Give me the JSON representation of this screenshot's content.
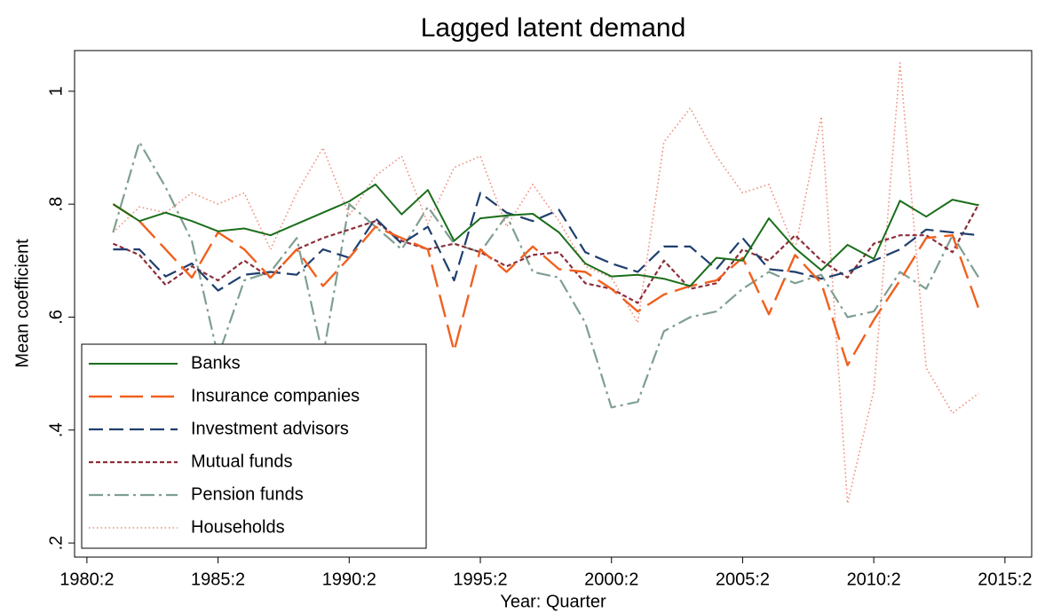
{
  "chart_data": {
    "type": "line",
    "title": "Lagged latent demand",
    "x_label": "Year: Quarter",
    "y_label": "Mean coefficient",
    "x": [
      1981.25,
      1982.25,
      1983.25,
      1984.25,
      1985.25,
      1986.25,
      1987.25,
      1988.25,
      1989.25,
      1990.25,
      1991.25,
      1992.25,
      1993.25,
      1994.25,
      1995.25,
      1996.25,
      1997.25,
      1998.25,
      1999.25,
      2000.25,
      2001.25,
      2002.25,
      2003.25,
      2004.25,
      2005.25,
      2006.25,
      2007.25,
      2008.25,
      2009.25,
      2010.25,
      2011.25,
      2012.25,
      2013.25,
      2014.25
    ],
    "xlim": [
      1979.78,
      2016.27
    ],
    "xticks": [
      {
        "value": 1980.25,
        "label": "1980:2"
      },
      {
        "value": 1985.25,
        "label": "1985:2"
      },
      {
        "value": 1990.25,
        "label": "1990:2"
      },
      {
        "value": 1995.25,
        "label": "1995:2"
      },
      {
        "value": 2000.25,
        "label": "2000:2"
      },
      {
        "value": 2005.25,
        "label": "2005:2"
      },
      {
        "value": 2010.25,
        "label": "2010:2"
      },
      {
        "value": 2015.25,
        "label": "2015:2"
      }
    ],
    "ylim": [
      0.175,
      1.072
    ],
    "yticks": [
      {
        "value": 0.2,
        "label": ".2"
      },
      {
        "value": 0.4,
        "label": ".4"
      },
      {
        "value": 0.6,
        "label": ".6"
      },
      {
        "value": 0.8,
        "label": ".8"
      },
      1
    ],
    "legend": "bottom-left",
    "series": [
      {
        "name": "Banks",
        "color": "#1a6e1a",
        "values": [
          0.8,
          0.77,
          0.785,
          0.77,
          0.752,
          0.757,
          0.745,
          0.765,
          0.785,
          0.805,
          0.835,
          0.782,
          0.825,
          0.735,
          0.775,
          0.78,
          0.783,
          0.75,
          0.695,
          0.672,
          0.675,
          0.668,
          0.655,
          0.705,
          0.7,
          0.775,
          0.722,
          0.683,
          0.728,
          0.703,
          0.806,
          0.778,
          0.808,
          0.798
        ]
      },
      {
        "name": "Insurance companies",
        "color": "#f0601e",
        "values": [
          0.8,
          0.77,
          0.72,
          0.67,
          0.75,
          0.72,
          0.67,
          0.72,
          0.655,
          0.705,
          0.76,
          0.74,
          0.72,
          0.54,
          0.72,
          0.68,
          0.725,
          0.685,
          0.68,
          0.65,
          0.61,
          0.64,
          0.655,
          0.665,
          0.705,
          0.605,
          0.71,
          0.66,
          0.515,
          0.595,
          0.665,
          0.74,
          0.745,
          0.615
        ]
      },
      {
        "name": "Investment advisors",
        "color": "#1f3f6e",
        "values": [
          0.72,
          0.72,
          0.672,
          0.695,
          0.647,
          0.675,
          0.68,
          0.675,
          0.72,
          0.705,
          0.775,
          0.73,
          0.76,
          0.665,
          0.82,
          0.785,
          0.77,
          0.79,
          0.715,
          0.695,
          0.68,
          0.725,
          0.725,
          0.685,
          0.74,
          0.685,
          0.68,
          0.668,
          0.68,
          0.7,
          0.72,
          0.755,
          0.75,
          0.745
        ]
      },
      {
        "name": "Mutual funds",
        "color": "#8a2f3a",
        "values": [
          0.73,
          0.71,
          0.657,
          0.69,
          0.665,
          0.7,
          0.67,
          0.72,
          0.74,
          0.755,
          0.77,
          0.735,
          0.72,
          0.73,
          0.715,
          0.69,
          0.71,
          0.715,
          0.66,
          0.65,
          0.625,
          0.7,
          0.65,
          0.66,
          0.72,
          0.7,
          0.745,
          0.7,
          0.67,
          0.73,
          0.745,
          0.745,
          0.715,
          0.8
        ]
      },
      {
        "name": "Pension funds",
        "color": "#7f9f90",
        "values": [
          0.75,
          0.91,
          0.83,
          0.735,
          0.53,
          0.665,
          0.68,
          0.74,
          0.53,
          0.8,
          0.76,
          0.72,
          0.795,
          0.73,
          0.715,
          0.78,
          0.68,
          0.67,
          0.59,
          0.44,
          0.45,
          0.575,
          0.6,
          0.61,
          0.65,
          0.68,
          0.66,
          0.675,
          0.6,
          0.61,
          0.68,
          0.65,
          0.745,
          0.67
        ]
      },
      {
        "name": "Households",
        "color": "#f08a78",
        "values": [
          0.75,
          0.795,
          0.785,
          0.82,
          0.8,
          0.82,
          0.72,
          0.82,
          0.9,
          0.78,
          0.85,
          0.885,
          0.765,
          0.865,
          0.885,
          0.76,
          0.835,
          0.77,
          0.69,
          0.67,
          0.59,
          0.91,
          0.97,
          0.885,
          0.82,
          0.835,
          0.72,
          0.955,
          0.27,
          0.47,
          1.05,
          0.51,
          0.43,
          0.465
        ]
      }
    ]
  }
}
